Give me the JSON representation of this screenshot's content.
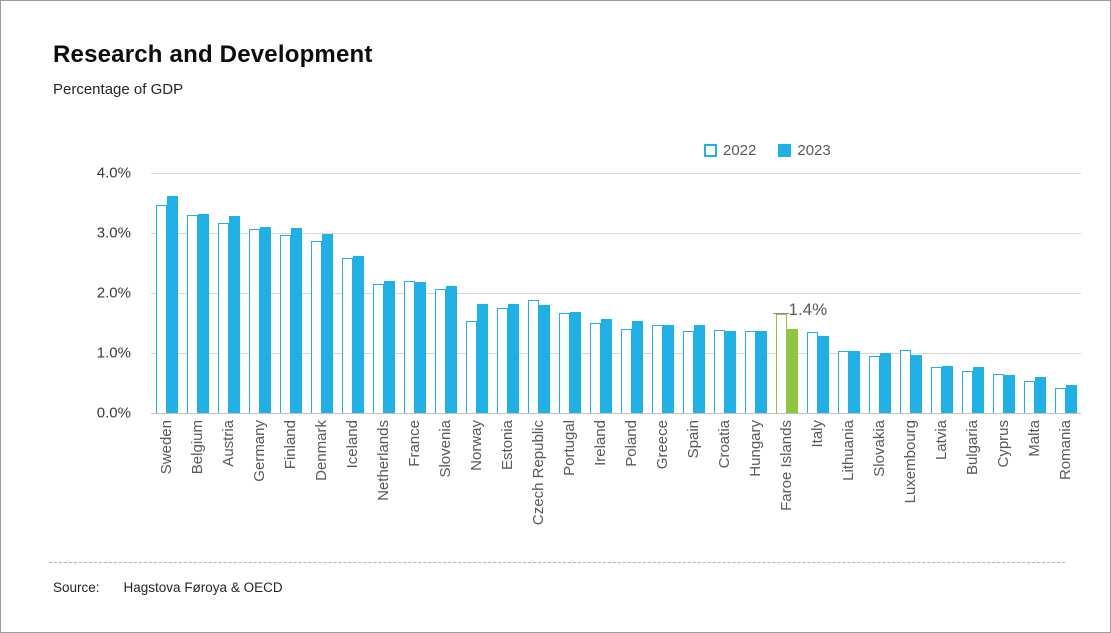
{
  "header": {
    "title": "Research and Development",
    "subtitle": "Percentage of GDP"
  },
  "legend": {
    "items": [
      {
        "label": "2022",
        "style": "outline"
      },
      {
        "label": "2023",
        "style": "solid"
      }
    ]
  },
  "annotation": {
    "text": "1.4%",
    "category": "Faroe Islands"
  },
  "source": {
    "label": "Source:",
    "value": "Hagstova Føroya & OECD"
  },
  "colors": {
    "series_blue": "#1fb0e6",
    "highlight_green": "#8ec63f",
    "grid": "#d9d9d9",
    "axis_text": "#3a3a3a",
    "category_text": "#595959"
  },
  "chart_data": {
    "type": "bar",
    "title": "Research and Development",
    "subtitle": "Percentage of GDP",
    "categories": [
      "Sweden",
      "Belgium",
      "Austria",
      "Germany",
      "Finland",
      "Denmark",
      "Iceland",
      "Netherlands",
      "France",
      "Slovenia",
      "Norway",
      "Estonia",
      "Czech Republic",
      "Portugal",
      "Ireland",
      "Poland",
      "Greece",
      "Spain",
      "Croatia",
      "Hungary",
      "Faroe Islands",
      "Italy",
      "Lithuania",
      "Slovakia",
      "Luxembourg",
      "Latvia",
      "Bulgaria",
      "Cyprus",
      "Malta",
      "Romania"
    ],
    "series": [
      {
        "name": "2022",
        "values": [
          3.47,
          3.3,
          3.17,
          3.06,
          2.97,
          2.86,
          2.59,
          2.15,
          2.2,
          2.07,
          1.53,
          1.75,
          1.88,
          1.67,
          1.5,
          1.4,
          1.46,
          1.37,
          1.39,
          1.36,
          1.65,
          1.35,
          1.03,
          0.95,
          1.05,
          0.77,
          0.7,
          0.65,
          0.53,
          0.42
        ]
      },
      {
        "name": "2023",
        "values": [
          3.61,
          3.32,
          3.29,
          3.1,
          3.09,
          2.99,
          2.62,
          2.2,
          2.18,
          2.11,
          1.82,
          1.82,
          1.8,
          1.68,
          1.57,
          1.54,
          1.46,
          1.47,
          1.36,
          1.36,
          1.4,
          1.29,
          1.03,
          1.0,
          0.96,
          0.79,
          0.76,
          0.63,
          0.6,
          0.47
        ]
      }
    ],
    "highlight_category": "Faroe Islands",
    "annotations": [
      {
        "category": "Faroe Islands",
        "text": "1.4%"
      }
    ],
    "ylim": [
      0,
      4
    ],
    "yticks": [
      "0.0%",
      "1.0%",
      "2.0%",
      "3.0%",
      "4.0%"
    ],
    "grid": "horizontal",
    "legend_position": "top-right",
    "xlabel": "",
    "ylabel": ""
  }
}
